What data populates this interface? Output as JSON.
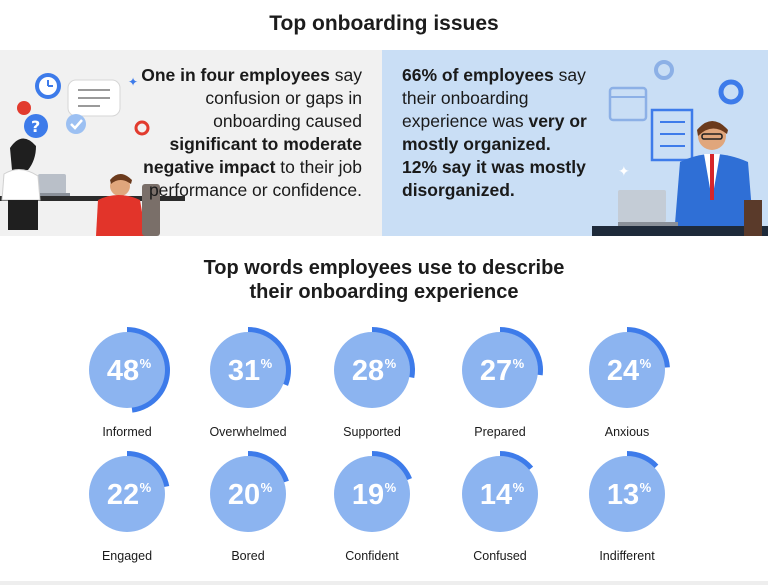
{
  "header": {
    "title": "Top onboarding issues"
  },
  "left_panel": {
    "p1": "One in four employees",
    "p2": " say confusion or gaps in onboarding caused ",
    "p3": "significant to moderate negative impact",
    "p4": " to their job performance or confidence."
  },
  "right_panel": {
    "p1": "66% of employees",
    "p2": " say their onboarding experience was ",
    "p3": "very or mostly organized.",
    "p4": "12% say it was ",
    "p5": "mostly disorganized."
  },
  "subtitle": {
    "line1": "Top words employees use to describe",
    "line2": "their onboarding experience"
  },
  "colors": {
    "ring_fill": "#8cb4f0",
    "ring_arc": "#3d7bea",
    "ring_track": "#ffffff",
    "left_panel_bg": "#f1f1f1",
    "right_panel_bg": "#c9def5"
  },
  "chart_data": {
    "type": "donut",
    "unit": "%",
    "title": "Top words employees use to describe their onboarding experience",
    "categories": [
      "Informed",
      "Overwhelmed",
      "Supported",
      "Prepared",
      "Anxious",
      "Engaged",
      "Bored",
      "Confident",
      "Confused",
      "Indifferent"
    ],
    "values": [
      48,
      31,
      28,
      27,
      24,
      22,
      20,
      19,
      14,
      13
    ],
    "rows": 2,
    "columns": 5
  }
}
